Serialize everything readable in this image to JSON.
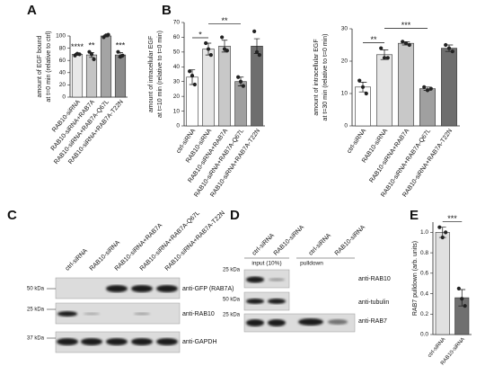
{
  "chart_data": [
    {
      "type": "bar",
      "panel": "A",
      "y_label": [
        "amount of EGF bound",
        "at t=0 min (relative to ctrl)"
      ],
      "categories": [
        "RAB10-siRNA",
        "RAB10-siRNA+RAB7A",
        "RAB10-siRNA+RAB7A-Q67L",
        "RAB10-siRNA+RAB7A-T22N"
      ],
      "values": [
        70,
        69,
        100,
        69
      ],
      "errors": [
        1.5,
        4,
        1.5,
        4
      ],
      "points": [
        [
          68,
          71,
          70
        ],
        [
          74,
          70,
          62
        ],
        [
          98,
          101,
          102
        ],
        [
          74,
          66,
          68
        ]
      ],
      "colors": [
        "#e8e8e8",
        "#c4c4c4",
        "#a4a4a4",
        "#8a8a8a"
      ],
      "significance": [
        "****",
        "**",
        null,
        "***"
      ],
      "ylim": [
        0,
        100
      ],
      "yticks": [
        0,
        20,
        40,
        60,
        80,
        100
      ]
    },
    {
      "type": "bar",
      "panel": "B",
      "y_label": [
        "amount of intracellular EGF",
        "at t=10 min (relative to t=0 min)"
      ],
      "categories": [
        "ctrl-siRNA",
        "RAB10-siRNA",
        "RAB10-siRNA+RAB7A",
        "RAB10-siRNA+RAB7A-Q67L",
        "RAB10-siRNA+RAB7A-T22N"
      ],
      "values": [
        33,
        52,
        54,
        30,
        54
      ],
      "errors": [
        5,
        4,
        4,
        3,
        5
      ],
      "points": [
        [
          37,
          34,
          28
        ],
        [
          56,
          52,
          48
        ],
        [
          60,
          52,
          51
        ],
        [
          33,
          30,
          27
        ],
        [
          64,
          50,
          48
        ]
      ],
      "colors": [
        "#ffffff",
        "#e4e4e4",
        "#c8c8c8",
        "#a0a0a0",
        "#6e6e6e"
      ],
      "comparisons": [
        {
          "between": [
            0,
            1
          ],
          "label": "*"
        },
        {
          "between": [
            1,
            3
          ],
          "label": "**"
        }
      ],
      "ylim": [
        0,
        70
      ],
      "yticks": [
        0,
        10,
        20,
        30,
        40,
        50,
        60,
        70
      ]
    },
    {
      "type": "bar",
      "y_label": [
        "amount of intracellular EGF",
        "at t=30 min (relative to t=0 min)"
      ],
      "categories": [
        "ctrl-siRNA",
        "RAB10-siRNA",
        "RAB10-siRNA+RAB7A",
        "RAB10-siRNA+RAB7A-Q67L",
        "RAB10-siRNA+RAB7A-T22N"
      ],
      "values": [
        12,
        22,
        25.5,
        11.5,
        24
      ],
      "errors": [
        1.5,
        1.5,
        0.5,
        0.5,
        1
      ],
      "points": [
        [
          14,
          12,
          10
        ],
        [
          24,
          21,
          21
        ],
        [
          26,
          25.5,
          25
        ],
        [
          12,
          11,
          11.5
        ],
        [
          25,
          24,
          23
        ]
      ],
      "colors": [
        "#ffffff",
        "#e4e4e4",
        "#c8c8c8",
        "#a0a0a0",
        "#6e6e6e"
      ],
      "comparisons": [
        {
          "between": [
            0,
            1
          ],
          "label": "**"
        },
        {
          "between": [
            1,
            3
          ],
          "label": "***"
        }
      ],
      "ylim": [
        0,
        30
      ],
      "yticks": [
        0,
        10,
        20,
        30
      ]
    },
    {
      "type": "bar",
      "panel": "E",
      "y_label": [
        "RAB7 pulldown (arb. units)"
      ],
      "categories": [
        "ctrl-siRNA",
        "RAB10-siRNA"
      ],
      "values": [
        1.0,
        0.36
      ],
      "errors": [
        0.05,
        0.08
      ],
      "points": [
        [
          1.05,
          0.95,
          1.0
        ],
        [
          0.45,
          0.35,
          0.28
        ]
      ],
      "colors": [
        "#e0e0e0",
        "#707070"
      ],
      "comparisons": [
        {
          "between": [
            0,
            1
          ],
          "label": "***"
        }
      ],
      "ylim": [
        0,
        1.1
      ],
      "yticks": [
        {
          "value": 0,
          "label": "0.0"
        },
        0.2,
        0.4,
        0.6,
        0.8,
        {
          "value": 1,
          "label": "1.0"
        }
      ]
    }
  ],
  "blots": [
    {
      "panel": "C",
      "lanes": [
        "ctrl-siRNA",
        "RAB10-siRNA",
        "RAB10-siRNA+RAB7A",
        "RAB10-siRNA+RAB7A-Q67L",
        "RAB10-siRNA+RAB7A-T22N"
      ],
      "markers": [
        "50 kDa",
        "25 kDa",
        "37 kDa"
      ],
      "antibodies": [
        "anti-GFP (RAB7A)",
        "anti-RAB10",
        "anti-GAPDH"
      ]
    },
    {
      "panel": "D",
      "lanes": [
        "ctrl-siRNA",
        "RAB10-siRNA",
        "ctrl-siRNA",
        "RAB10-siRNA"
      ],
      "groups": [
        "input (10%)",
        "pulldown"
      ],
      "markers": [
        "25 kDa",
        "50 kDa",
        "25 kDa"
      ],
      "antibodies": [
        "anti-RAB10",
        "anti-tubulin",
        "anti-RAB7"
      ]
    }
  ]
}
